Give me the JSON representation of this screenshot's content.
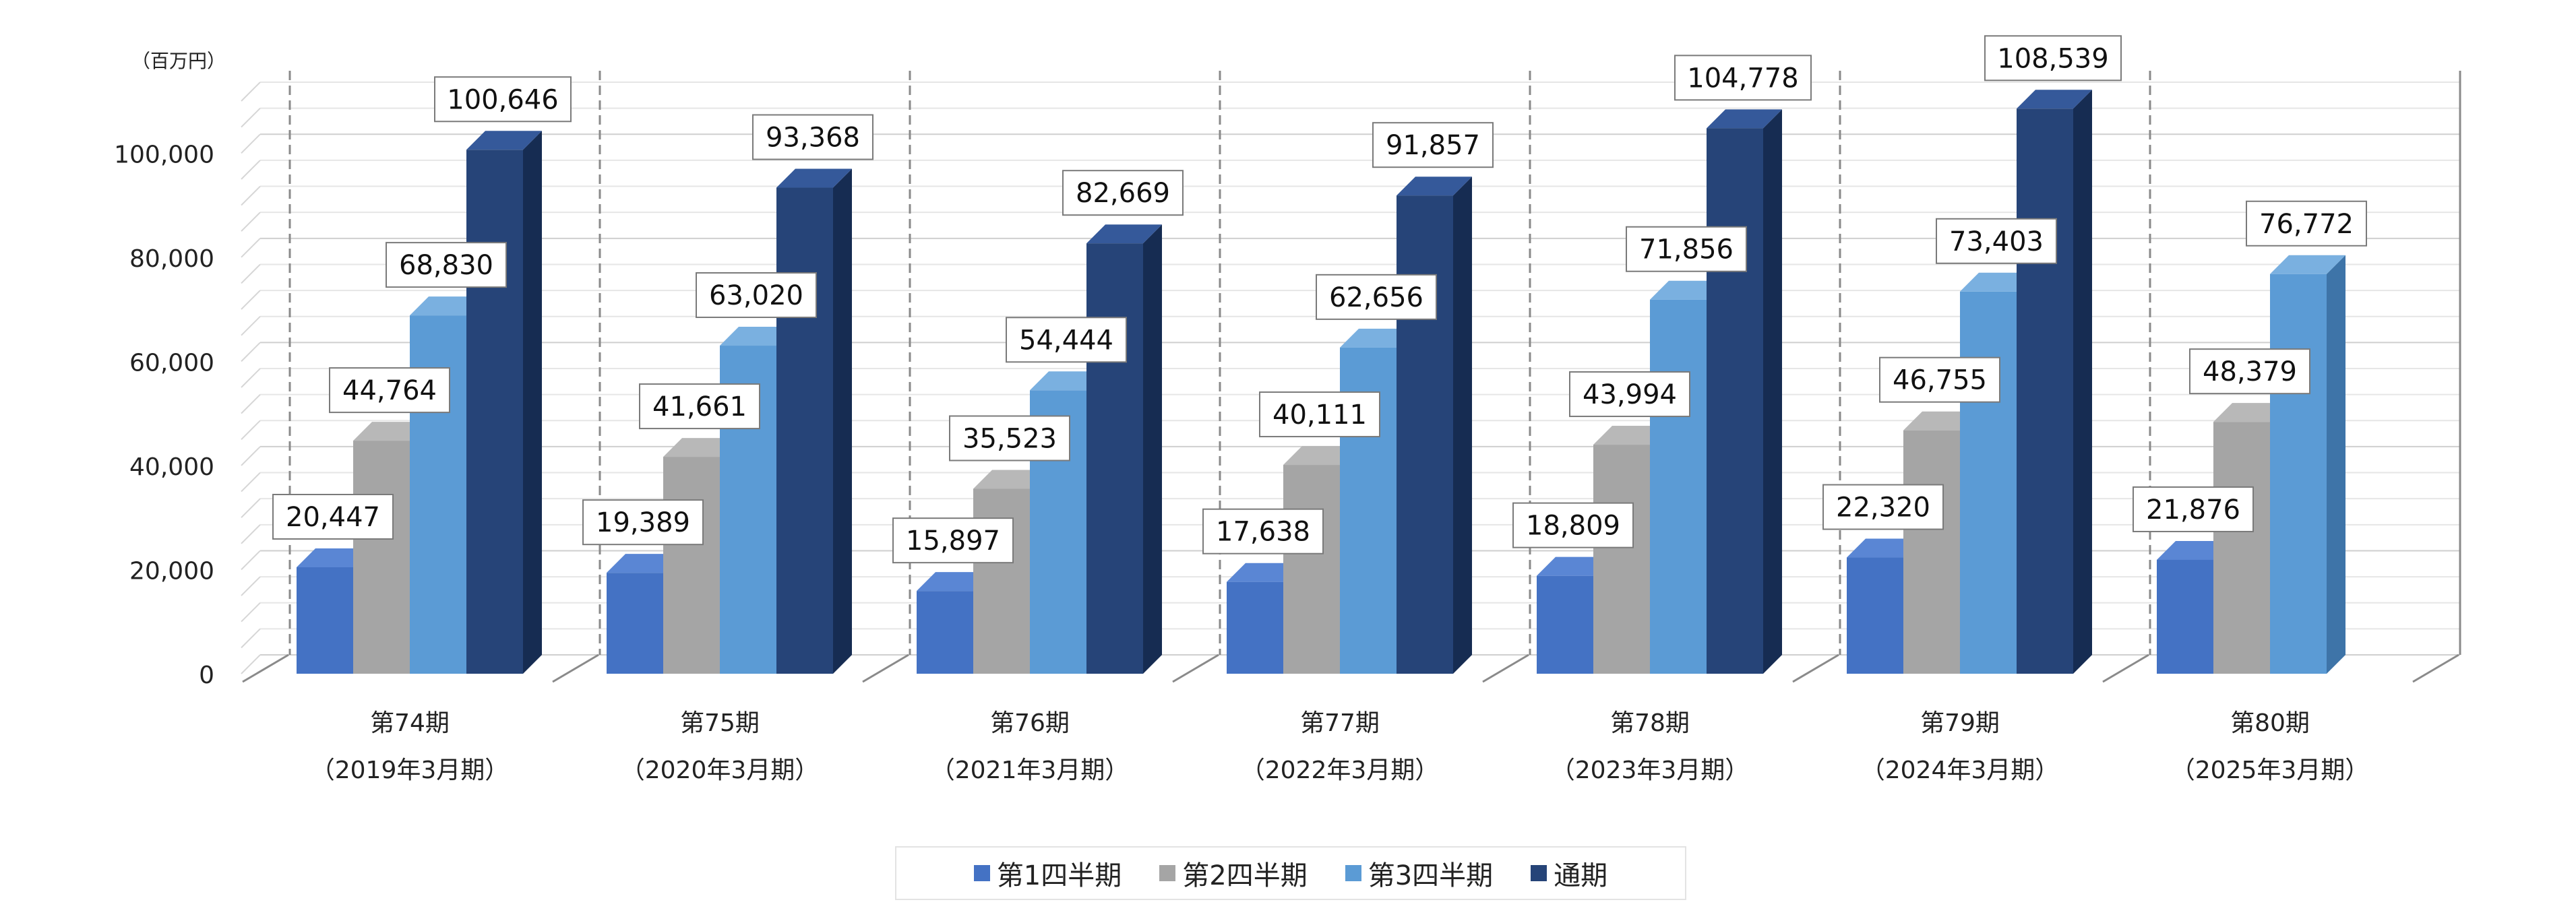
{
  "chart_data": {
    "type": "bar",
    "unit_label": "（百万円）",
    "ylim": [
      0,
      110000
    ],
    "yticks": [
      0,
      20000,
      40000,
      60000,
      80000,
      100000
    ],
    "ytick_labels": [
      "0",
      "20,000",
      "40,000",
      "60,000",
      "80,000",
      "100,000"
    ],
    "grid": true,
    "legend_position": "bottom",
    "categories": [
      {
        "period": "第74期",
        "fy": "（2019年3月期）"
      },
      {
        "period": "第75期",
        "fy": "（2020年3月期）"
      },
      {
        "period": "第76期",
        "fy": "（2021年3月期）"
      },
      {
        "period": "第77期",
        "fy": "（2022年3月期）"
      },
      {
        "period": "第78期",
        "fy": "（2023年3月期）"
      },
      {
        "period": "第79期",
        "fy": "（2024年3月期）"
      },
      {
        "period": "第80期",
        "fy": "（2025年3月期）"
      }
    ],
    "series": [
      {
        "name": "第1四半期",
        "color": "#4472C4",
        "side_color": "#2F56A0",
        "top_color": "#5A86D4",
        "values": [
          20447,
          19389,
          15897,
          17638,
          18809,
          22320,
          21876
        ],
        "labels": [
          "20,447",
          "19,389",
          "15,897",
          "17,638",
          "18,809",
          "22,320",
          "21,876"
        ]
      },
      {
        "name": "第2四半期",
        "color": "#A5A5A5",
        "side_color": "#7F7F7F",
        "top_color": "#B8B8B8",
        "values": [
          44764,
          41661,
          35523,
          40111,
          43994,
          46755,
          48379
        ],
        "labels": [
          "44,764",
          "41,661",
          "35,523",
          "40,111",
          "43,994",
          "46,755",
          "48,379"
        ]
      },
      {
        "name": "第3四半期",
        "color": "#5B9BD5",
        "side_color": "#3E74A8",
        "top_color": "#7AB0E0",
        "values": [
          68830,
          63020,
          54444,
          62656,
          71856,
          73403,
          76772
        ],
        "labels": [
          "68,830",
          "63,020",
          "54,444",
          "62,656",
          "71,856",
          "73,403",
          "76,772"
        ]
      },
      {
        "name": "通期",
        "color": "#264478",
        "side_color": "#162C52",
        "top_color": "#35599A",
        "values": [
          100646,
          93368,
          82669,
          91857,
          104778,
          108539,
          null
        ],
        "labels": [
          "100,646",
          "93,368",
          "82,669",
          "91,857",
          "104,778",
          "108,539",
          ""
        ]
      }
    ]
  }
}
